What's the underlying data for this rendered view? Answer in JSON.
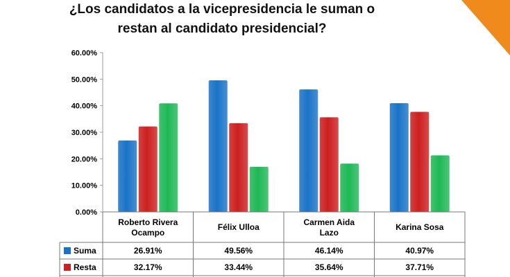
{
  "title_line1": "¿Los candidatos a la vicepresidencia le suman o",
  "title_line2": "restan al candidato presidencial?",
  "colors": {
    "corner": "#f08a1c",
    "suma": "#1a73c7",
    "resta": "#cc1f1f",
    "third": "#1fb856"
  },
  "chart_data": {
    "type": "bar",
    "categories": [
      [
        "Roberto Rivera",
        "Ocampo"
      ],
      [
        "Félix Ulloa"
      ],
      [
        "Carmen Aida",
        "Lazo"
      ],
      [
        "Karina Sosa"
      ]
    ],
    "ylim": [
      0,
      60
    ],
    "yticks": [
      "0.00%",
      "10.00%",
      "20.00%",
      "30.00%",
      "40.00%",
      "50.00%",
      "60.00%"
    ],
    "series": [
      {
        "name": "Suma",
        "values": [
          26.91,
          49.56,
          46.14,
          40.97
        ],
        "labels": [
          "26.91%",
          "49.56%",
          "46.14%",
          "40.97%"
        ],
        "color": "#1a73c7"
      },
      {
        "name": "Resta",
        "values": [
          32.17,
          33.44,
          35.64,
          37.71
        ],
        "labels": [
          "32.17%",
          "33.44%",
          "35.64%",
          "37.71%"
        ],
        "color": "#cc1f1f"
      },
      {
        "values": [
          40.9,
          17.0,
          18.2,
          21.3
        ],
        "color": "#1fb856"
      }
    ],
    "grid": false
  }
}
